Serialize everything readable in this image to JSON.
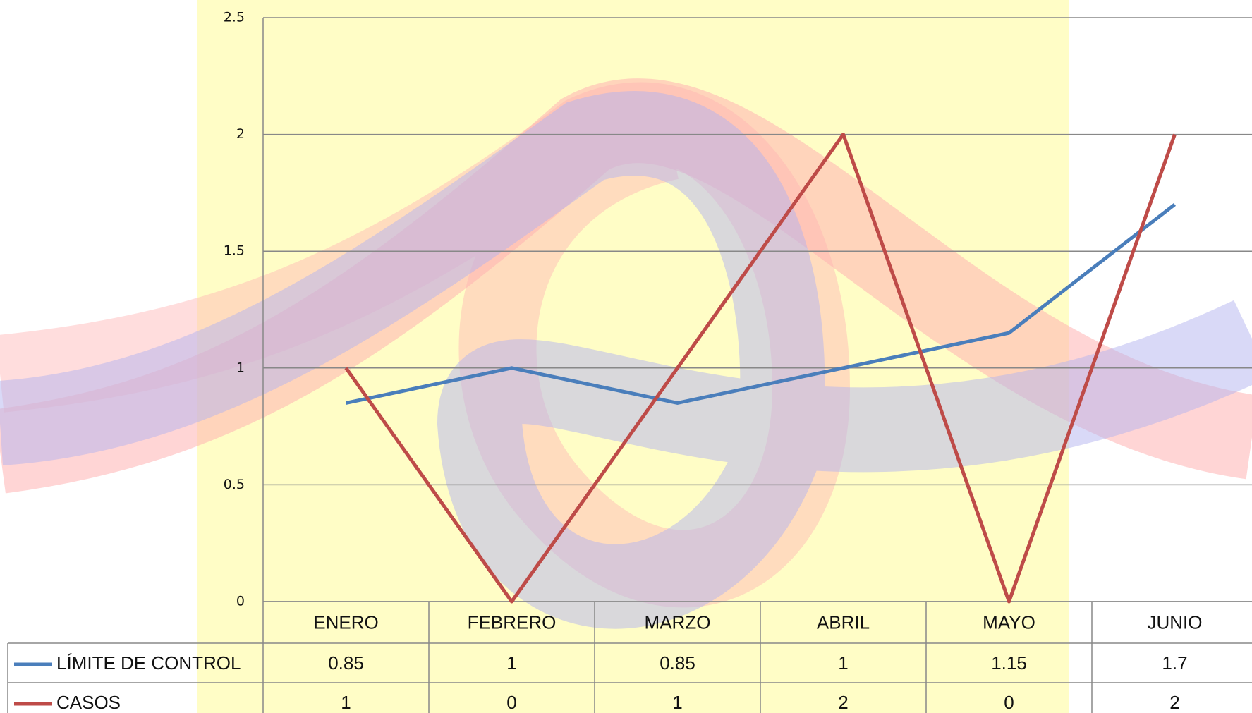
{
  "chart_data": {
    "type": "line",
    "categories": [
      "ENERO",
      "FEBRERO",
      "MARZO",
      "ABRIL",
      "MAYO",
      "JUNIO"
    ],
    "series": [
      {
        "name": "LÍMITE DE CONTROL",
        "color": "#4a7ebb",
        "values": [
          0.85,
          1,
          0.85,
          1,
          1.15,
          1.7
        ]
      },
      {
        "name": "CASOS",
        "color": "#be4b48",
        "values": [
          1,
          0,
          1,
          2,
          0,
          2
        ]
      }
    ],
    "ylim": [
      0,
      2.5
    ],
    "yticks": [
      0,
      0.5,
      1,
      1.5,
      2,
      2.5
    ],
    "grid": true,
    "data_table": true
  }
}
